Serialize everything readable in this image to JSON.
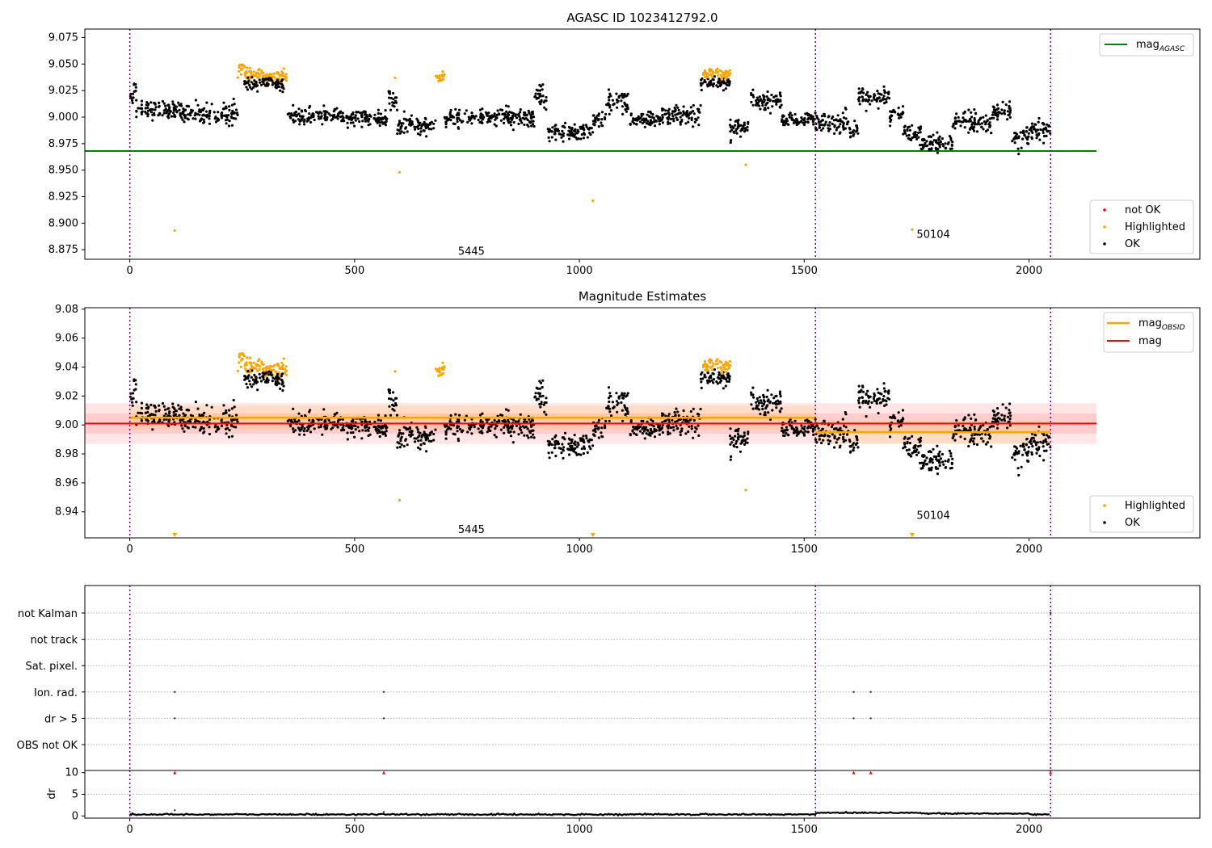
{
  "chart_data": [
    {
      "type": "scatter",
      "title": "AGASC ID 1023412792.0",
      "xlim": [
        -100,
        2380
      ],
      "ylim": [
        8.866,
        9.083
      ],
      "xticks": [
        0,
        500,
        1000,
        1500,
        2000
      ],
      "yticks": [
        8.875,
        8.9,
        8.925,
        8.95,
        8.975,
        9.0,
        9.025,
        9.05,
        9.075
      ],
      "ytick_labels": [
        "8.875",
        "8.900",
        "8.925",
        "8.950",
        "8.975",
        "9.000",
        "9.025",
        "9.050",
        "9.075"
      ],
      "obs_boundaries": [
        0,
        1525,
        2048
      ],
      "annotations": [
        {
          "text": "5445",
          "x": 730,
          "y": 8.874
        },
        {
          "text": "50104",
          "x": 1750,
          "y": 8.89
        }
      ],
      "lines": [
        {
          "name": "mag",
          "sub": "AGASC",
          "y": 8.968,
          "x": [
            -100,
            2150
          ],
          "color": "#008000"
        }
      ],
      "segments": [
        [
          0,
          8,
          9.02,
          0.006
        ],
        [
          8,
          14,
          9.028,
          0.004
        ],
        [
          14,
          120,
          9.007,
          0.006
        ],
        [
          120,
          240,
          9.003,
          0.007
        ],
        [
          240,
          255,
          9.047,
          0.004
        ],
        [
          255,
          300,
          9.04,
          0.004
        ],
        [
          300,
          350,
          9.038,
          0.004
        ],
        [
          255,
          345,
          9.031,
          0.004
        ],
        [
          350,
          420,
          9.001,
          0.006
        ],
        [
          420,
          530,
          9.0,
          0.005
        ],
        [
          530,
          575,
          8.998,
          0.005
        ],
        [
          575,
          595,
          9.015,
          0.008
        ],
        [
          595,
          680,
          8.992,
          0.006
        ],
        [
          680,
          700,
          9.038,
          0.003
        ],
        [
          700,
          740,
          8.998,
          0.006
        ],
        [
          740,
          900,
          9.0,
          0.006
        ],
        [
          900,
          930,
          9.02,
          0.007
        ],
        [
          930,
          1030,
          8.985,
          0.006
        ],
        [
          1030,
          1060,
          8.998,
          0.006
        ],
        [
          1060,
          1110,
          9.014,
          0.008
        ],
        [
          1110,
          1180,
          8.997,
          0.005
        ],
        [
          1180,
          1270,
          9.002,
          0.006
        ],
        [
          1270,
          1335,
          9.032,
          0.004
        ],
        [
          1275,
          1335,
          9.041,
          0.003
        ],
        [
          1335,
          1380,
          8.99,
          0.006
        ],
        [
          1380,
          1450,
          9.016,
          0.006
        ],
        [
          1450,
          1525,
          8.997,
          0.005
        ],
        [
          1525,
          1600,
          8.996,
          0.007
        ],
        [
          1600,
          1620,
          8.985,
          0.006
        ],
        [
          1620,
          1690,
          9.018,
          0.007
        ],
        [
          1690,
          1720,
          9.002,
          0.006
        ],
        [
          1720,
          1760,
          8.985,
          0.007
        ],
        [
          1760,
          1830,
          8.975,
          0.006
        ],
        [
          1830,
          1920,
          8.995,
          0.008
        ],
        [
          1920,
          1960,
          9.004,
          0.006
        ],
        [
          1960,
          2000,
          8.98,
          0.007
        ],
        [
          2000,
          2048,
          8.986,
          0.007
        ]
      ],
      "highlight_ranges": [
        [
          240,
          350
        ],
        [
          680,
          700
        ],
        [
          1275,
          1335
        ]
      ],
      "outliers": [
        [
          100,
          8.893
        ],
        [
          590,
          9.037
        ],
        [
          600,
          8.948
        ],
        [
          1030,
          8.921
        ],
        [
          1370,
          8.955
        ],
        [
          1740,
          8.894
        ]
      ],
      "legend": {
        "position": "bottom-right",
        "entries": [
          {
            "label": "not OK",
            "color": "#ff0000"
          },
          {
            "label": "Highlighted",
            "color": "#ffa500"
          },
          {
            "label": "OK",
            "color": "#000000"
          }
        ]
      },
      "top_legend": {
        "position": "top-right"
      }
    },
    {
      "type": "scatter",
      "title": "Magnitude Estimates",
      "xlim": [
        -100,
        2380
      ],
      "ylim": [
        8.922,
        9.081
      ],
      "xticks": [
        0,
        500,
        1000,
        1500,
        2000
      ],
      "yticks": [
        8.94,
        8.96,
        8.98,
        9.0,
        9.02,
        9.04,
        9.06,
        9.08
      ],
      "ytick_labels": [
        "8.94",
        "8.96",
        "8.98",
        "9.00",
        "9.02",
        "9.04",
        "9.06",
        "9.08"
      ],
      "obs_boundaries": [
        0,
        1525,
        2048
      ],
      "annotations": [
        {
          "text": "5445",
          "x": 730,
          "y": 8.928
        },
        {
          "text": "50104",
          "x": 1750,
          "y": 8.938
        }
      ],
      "mag": {
        "name": "mag",
        "y": 9.001,
        "band_inner": 0.007,
        "band_outer": 0.014,
        "x": [
          -100,
          2150
        ],
        "color": "#ff0000"
      },
      "mag_obsid": [
        {
          "x": [
            0,
            1525
          ],
          "y": 9.005,
          "band": 0.008
        },
        {
          "x": [
            1525,
            2048
          ],
          "y": 8.995,
          "band": 0.008
        }
      ],
      "mag_obsid_name": "mag",
      "mag_obsid_sub": "OBSID",
      "triangles": [
        100,
        1030,
        1740
      ],
      "legend_bottom": {
        "position": "bottom-right",
        "entries": [
          {
            "label": "Highlighted",
            "color": "#ffa500"
          },
          {
            "label": "OK",
            "color": "#000000"
          }
        ]
      }
    },
    {
      "type": "scatter",
      "title": "",
      "xticks": [
        0,
        500,
        1000,
        1500,
        2000
      ],
      "flags": [
        "not Kalman",
        "not track",
        "Sat. pixel.",
        "Ion. rad.",
        "dr > 5",
        "OBS not OK"
      ],
      "flag_points": {
        "Ion. rad.": [
          100,
          565,
          1610,
          1648
        ],
        "dr > 5": [
          100,
          565,
          1610,
          1648
        ],
        "not Kalman": [
          2048
        ]
      },
      "dr": {
        "ylabel": "dr",
        "ylim": [
          -0.5,
          10.5
        ],
        "yticks": [
          0,
          5,
          10
        ],
        "baseline": 0.35,
        "spikes": [
          [
            100,
            1.3
          ],
          [
            565,
            0.9
          ]
        ],
        "capped": [
          100,
          565,
          1610,
          1648,
          2048
        ]
      }
    }
  ]
}
